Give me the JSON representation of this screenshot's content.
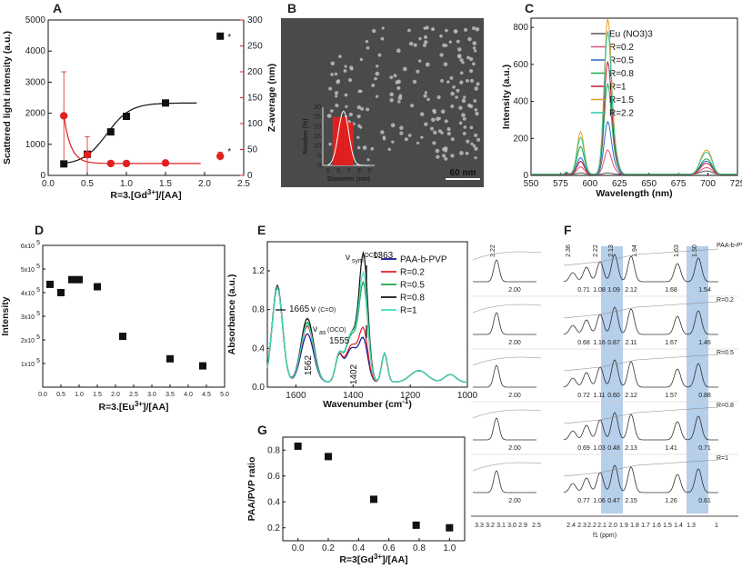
{
  "figure_labels": {
    "a": "A",
    "b": "B",
    "c": "C",
    "d": "D",
    "e": "E",
    "f": "F",
    "g": "G"
  },
  "colors": {
    "black": "#111111",
    "red": "#e02020",
    "navy": "#10109a",
    "pink": "#e05070",
    "green": "#1fa64a",
    "crimson": "#c01838",
    "orange": "#e8a020",
    "teal": "#30c8a8",
    "band": "#7aa8d8"
  },
  "chart_data": [
    {
      "id": "A",
      "type": "scatter",
      "xlabel": "R=3.[Gd",
      "xlabel_sup": "3+",
      "xlabel_end": "]/[AA]",
      "ylabel": "Scattered light intensity (a.u.)",
      "y2label": "Z-average (nm)",
      "xlim": [
        0.0,
        2.5
      ],
      "ylim": [
        0,
        5000
      ],
      "y2lim": [
        0,
        300
      ],
      "xticks": [
        "0.0",
        "0.5",
        "1.0",
        "1.5",
        "2.0",
        "2.5"
      ],
      "yticks": [
        "0",
        "1000",
        "2000",
        "3000",
        "4000",
        "5000"
      ],
      "y2ticks": [
        "0",
        "50",
        "100",
        "150",
        "200",
        "250",
        "300"
      ],
      "series": [
        {
          "name": "Scattered light intensity",
          "axis": "left",
          "color": "#111111",
          "x": [
            0.2,
            0.5,
            0.8,
            1.0,
            1.5,
            2.2
          ],
          "y": [
            370,
            680,
            1400,
            1900,
            2330,
            4480
          ]
        },
        {
          "name": "Z-average",
          "axis": "right",
          "color": "#e02020",
          "x": [
            0.2,
            0.5,
            0.8,
            1.0,
            1.5,
            2.2
          ],
          "y": [
            115,
            40,
            23,
            23,
            24,
            37
          ]
        }
      ],
      "asterisk": "*"
    },
    {
      "id": "B",
      "type": "image",
      "scalebar": "60 nm",
      "inset": {
        "type": "bar",
        "xlabel": "Diameter (nm)",
        "ylabel": "Number (%)",
        "xticks": [
          "5",
          "6",
          "7",
          "8",
          "9"
        ],
        "yticks": [
          "0",
          "5",
          "10",
          "15",
          "20",
          "25",
          "30"
        ],
        "x": [
          5.7,
          6.2,
          6.7,
          7.2
        ],
        "values": [
          25,
          25,
          25,
          22
        ],
        "ylim": [
          0,
          30
        ]
      }
    },
    {
      "id": "C",
      "type": "line",
      "xlabel": "Wavelength (nm)",
      "ylabel": "Intensity (a.u.)",
      "xlim": [
        550,
        725
      ],
      "ylim": [
        0,
        850
      ],
      "xticks": [
        "550",
        "575",
        "600",
        "625",
        "650",
        "675",
        "700",
        "725"
      ],
      "yticks": [
        "0",
        "200",
        "400",
        "600",
        "800"
      ],
      "series": [
        {
          "name": "Eu (NO3)3",
          "color": "#555555",
          "peaks": [
            8,
            8,
            15
          ]
        },
        {
          "name": "R=0.2",
          "color": "#e05070",
          "peaks": [
            40,
            130,
            30
          ]
        },
        {
          "name": "R=0.5",
          "color": "#2a6ad0",
          "peaks": [
            90,
            280,
            60
          ]
        },
        {
          "name": "R=0.8",
          "color": "#1fa64a",
          "peaks": [
            150,
            480,
            70
          ]
        },
        {
          "name": "R=1",
          "color": "#c01838",
          "peaks": [
            70,
            600,
            50
          ]
        },
        {
          "name": "R=1.5",
          "color": "#e8a020",
          "peaks": [
            230,
            830,
            110
          ]
        },
        {
          "name": "R=2.2",
          "color": "#30c8a8",
          "peaks": [
            200,
            760,
            100
          ]
        }
      ]
    },
    {
      "id": "D",
      "type": "scatter",
      "xlabel": "R=3.[Eu",
      "xlabel_sup": "3+",
      "xlabel_end": "]/[AA]",
      "ylabel": "Intensity",
      "xlim": [
        0.0,
        5.0
      ],
      "ylim": [
        0,
        600000
      ],
      "xticks": [
        "0.0",
        "0.5",
        "1.0",
        "1.5",
        "2.0",
        "2.5",
        "3.0",
        "3.5",
        "4.0",
        "4.5",
        "5.0"
      ],
      "yticks": [
        "1x10",
        "2x10",
        "3x10",
        "4x10",
        "5x10",
        "6x10"
      ],
      "ytick_exp": "5",
      "x": [
        0.2,
        0.5,
        0.8,
        1.0,
        1.5,
        2.2,
        3.5,
        4.4
      ],
      "y": [
        435000,
        400000,
        455000,
        455000,
        425000,
        215000,
        120000,
        90000
      ]
    },
    {
      "id": "E",
      "type": "line",
      "xlabel": "Wavenumber (cm",
      "xlabel_sup": "-1",
      "xlabel_end": ")",
      "ylabel": "Absorbance (a.u.)",
      "xlim": [
        1700,
        1000
      ],
      "ylim": [
        0.0,
        1.5
      ],
      "xticks": [
        "1600",
        "1400",
        "1200",
        "1000"
      ],
      "yticks": [
        "0.0",
        "0.4",
        "0.8",
        "1.2"
      ],
      "series": [
        {
          "name": "PAA-b-PVP",
          "color": "#10109a",
          "s1665": 0.98,
          "s1560": 0.5,
          "s1400": 0.35,
          "s1363": 0.4
        },
        {
          "name": "R=0.2",
          "color": "#e02020",
          "s1665": 0.98,
          "s1560": 0.58,
          "s1400": 0.38,
          "s1363": 0.5
        },
        {
          "name": "R=0.5",
          "color": "#1fa64a",
          "s1665": 0.98,
          "s1560": 0.62,
          "s1400": 0.48,
          "s1363": 0.95
        },
        {
          "name": "R=0.8",
          "color": "#111111",
          "s1665": 1.0,
          "s1560": 0.66,
          "s1400": 0.5,
          "s1363": 1.25
        },
        {
          "name": "R=1",
          "color": "#40e0c0",
          "s1665": 0.98,
          "s1560": 0.6,
          "s1400": 0.5,
          "s1363": 1.05
        }
      ],
      "annotations": [
        "1665",
        "ν",
        "(C=O)",
        "ν",
        "as",
        "(OCO)",
        "1555",
        "ν",
        "sym",
        "(OCO)",
        "1363",
        "1562",
        "1402"
      ]
    },
    {
      "id": "F",
      "type": "nmr",
      "xlabel": "f1 (ppm)",
      "xticks": [
        "3.3",
        "3.2",
        "3.1",
        "3.0",
        "2.9",
        "2.5",
        "2.4",
        "2.3",
        "2.2",
        "2.1",
        "2.0",
        "1.9",
        "1.8",
        "1.7",
        "1.6",
        "1.5",
        "1.4",
        "1.3",
        "1"
      ],
      "peak_labels": [
        "3.22",
        "2.36",
        "2.22",
        "2.13",
        "1.94",
        "1.63",
        "1.50"
      ],
      "rows": [
        {
          "label": "PAA-b-PVP",
          "left": "2.00",
          "ints": [
            "0.71",
            "1.08",
            "1.09",
            "2.12",
            "1.68",
            "1.54"
          ]
        },
        {
          "label": "R=0.2",
          "left": "2.00",
          "ints": [
            "0.68",
            "1.16",
            "0.87",
            "2.11",
            "1.67",
            "1.46"
          ]
        },
        {
          "label": "R=0.5",
          "left": "2.00",
          "ints": [
            "0.72",
            "1.11",
            "0.60",
            "2.12",
            "1.57",
            "0.88"
          ]
        },
        {
          "label": "R=0.8",
          "left": "2.00",
          "ints": [
            "0.69",
            "1.03",
            "0.48",
            "2.13",
            "1.41",
            "0.71"
          ]
        },
        {
          "label": "R=1",
          "left": "2.00",
          "ints": [
            "0.77",
            "1.06",
            "0.47",
            "2.15",
            "1.26",
            "0.61"
          ]
        }
      ]
    },
    {
      "id": "G",
      "type": "scatter",
      "xlabel": "R=3[Gd",
      "xlabel_sup": "3+",
      "xlabel_end": "]/[AA]",
      "ylabel": "PAA/PVP ratio",
      "xlim": [
        -0.1,
        1.1
      ],
      "ylim": [
        0.1,
        0.9
      ],
      "xticks": [
        "0.0",
        "0.2",
        "0.4",
        "0.6",
        "0.8",
        "1.0"
      ],
      "yticks": [
        "0.2",
        "0.4",
        "0.6",
        "0.8"
      ],
      "x": [
        0.0,
        0.2,
        0.5,
        0.78,
        1.0
      ],
      "y": [
        0.83,
        0.75,
        0.42,
        0.22,
        0.2
      ]
    }
  ]
}
